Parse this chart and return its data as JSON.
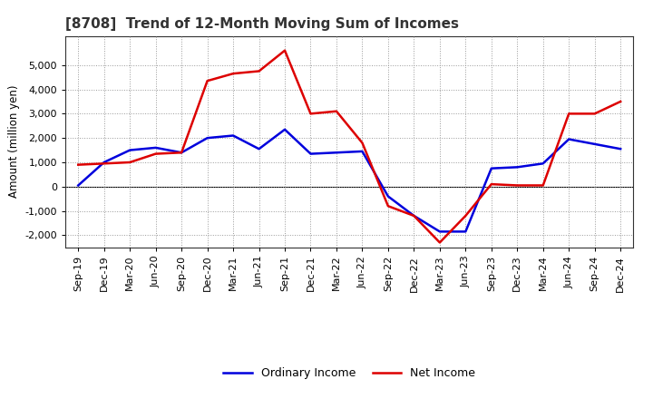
{
  "title": "[8708]  Trend of 12-Month Moving Sum of Incomes",
  "ylabel": "Amount (million yen)",
  "x_labels": [
    "Sep-19",
    "Dec-19",
    "Mar-20",
    "Jun-20",
    "Sep-20",
    "Dec-20",
    "Mar-21",
    "Jun-21",
    "Sep-21",
    "Dec-21",
    "Mar-22",
    "Jun-22",
    "Sep-22",
    "Dec-22",
    "Mar-23",
    "Jun-23",
    "Sep-23",
    "Dec-23",
    "Mar-24",
    "Jun-24",
    "Sep-24",
    "Dec-24"
  ],
  "ordinary_income": [
    50,
    1000,
    1500,
    1600,
    1400,
    2000,
    2100,
    1550,
    2350,
    1350,
    1400,
    1450,
    -400,
    -1200,
    -1850,
    -1850,
    750,
    800,
    950,
    1950,
    1750,
    1550
  ],
  "net_income": [
    900,
    950,
    1000,
    1350,
    1400,
    4350,
    4650,
    4750,
    5600,
    3000,
    3100,
    1800,
    -800,
    -1200,
    -2300,
    -1200,
    100,
    50,
    50,
    3000,
    3000,
    3500
  ],
  "ordinary_income_color": "#0000dd",
  "net_income_color": "#dd0000",
  "ylim": [
    -2500,
    6200
  ],
  "yticks": [
    -2000,
    -1000,
    0,
    1000,
    2000,
    3000,
    4000,
    5000
  ],
  "background_color": "#ffffff",
  "plot_bg_color": "#ffffff",
  "grid_color": "#999999",
  "line_width": 1.8,
  "title_color": "#333333",
  "title_fontsize": 11,
  "axis_label_fontsize": 8.5,
  "tick_fontsize": 8,
  "legend_fontsize": 9
}
